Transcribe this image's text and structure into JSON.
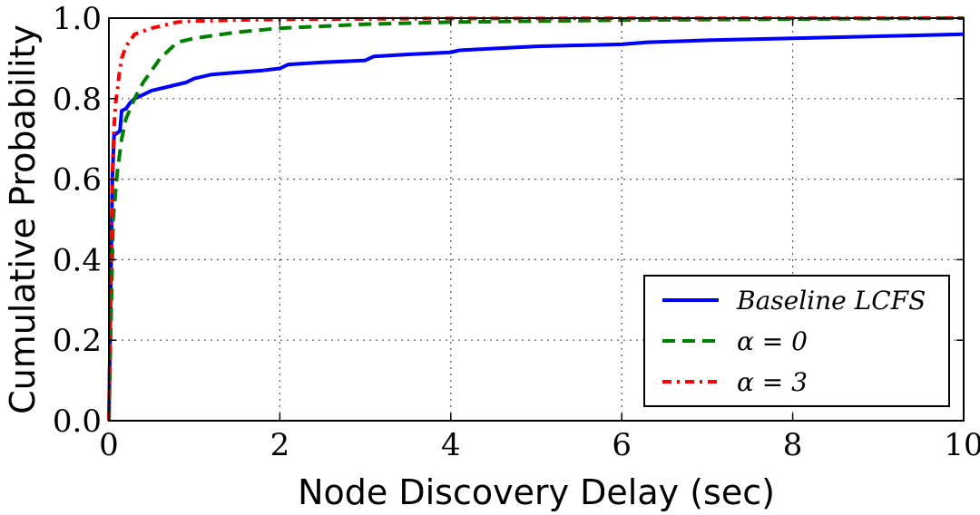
{
  "chart_data": {
    "type": "line",
    "title": "",
    "xlabel": "Node Discovery Delay (sec)",
    "ylabel": "Cumulative Probability",
    "xlim": [
      0,
      10
    ],
    "ylim": [
      0,
      1.0
    ],
    "xticks": [
      "0",
      "2",
      "4",
      "6",
      "8",
      "10"
    ],
    "yticks": [
      "0.0",
      "0.2",
      "0.4",
      "0.6",
      "0.8",
      "1.0"
    ],
    "grid": true,
    "legend_position": "lower-right",
    "series": [
      {
        "name": "Baseline LCFS",
        "color": "#0000ff",
        "style": "solid",
        "points": [
          [
            0,
            0
          ],
          [
            0.02,
            0.3
          ],
          [
            0.04,
            0.6
          ],
          [
            0.06,
            0.71
          ],
          [
            0.1,
            0.715
          ],
          [
            0.13,
            0.72
          ],
          [
            0.15,
            0.77
          ],
          [
            0.2,
            0.775
          ],
          [
            0.25,
            0.79
          ],
          [
            0.3,
            0.8
          ],
          [
            0.4,
            0.81
          ],
          [
            0.5,
            0.82
          ],
          [
            0.7,
            0.83
          ],
          [
            0.9,
            0.84
          ],
          [
            1.0,
            0.85
          ],
          [
            1.2,
            0.86
          ],
          [
            1.5,
            0.865
          ],
          [
            1.8,
            0.87
          ],
          [
            2.0,
            0.875
          ],
          [
            2.1,
            0.885
          ],
          [
            2.5,
            0.89
          ],
          [
            3.0,
            0.895
          ],
          [
            3.1,
            0.905
          ],
          [
            3.5,
            0.91
          ],
          [
            4.0,
            0.915
          ],
          [
            4.1,
            0.92
          ],
          [
            5.0,
            0.93
          ],
          [
            6.0,
            0.935
          ],
          [
            6.3,
            0.94
          ],
          [
            7.0,
            0.945
          ],
          [
            8.0,
            0.95
          ],
          [
            9.0,
            0.955
          ],
          [
            10.0,
            0.96
          ]
        ]
      },
      {
        "name": "α = 0",
        "color": "#008000",
        "style": "dashed",
        "points": [
          [
            0,
            0
          ],
          [
            0.03,
            0.3
          ],
          [
            0.05,
            0.5
          ],
          [
            0.1,
            0.62
          ],
          [
            0.15,
            0.7
          ],
          [
            0.2,
            0.75
          ],
          [
            0.3,
            0.8
          ],
          [
            0.4,
            0.84
          ],
          [
            0.5,
            0.87
          ],
          [
            0.6,
            0.9
          ],
          [
            0.7,
            0.92
          ],
          [
            0.8,
            0.94
          ],
          [
            1.0,
            0.95
          ],
          [
            1.5,
            0.965
          ],
          [
            2.0,
            0.975
          ],
          [
            3.0,
            0.985
          ],
          [
            4.0,
            0.99
          ],
          [
            6.0,
            0.995
          ],
          [
            10.0,
            1.0
          ]
        ]
      },
      {
        "name": "α = 3",
        "color": "#ff0000",
        "style": "dashdot",
        "points": [
          [
            0,
            0
          ],
          [
            0.02,
            0.3
          ],
          [
            0.04,
            0.6
          ],
          [
            0.06,
            0.73
          ],
          [
            0.08,
            0.79
          ],
          [
            0.1,
            0.82
          ],
          [
            0.12,
            0.86
          ],
          [
            0.15,
            0.9
          ],
          [
            0.2,
            0.93
          ],
          [
            0.3,
            0.96
          ],
          [
            0.5,
            0.975
          ],
          [
            0.8,
            0.99
          ],
          [
            1.0,
            0.993
          ],
          [
            2.0,
            0.997
          ],
          [
            4.0,
            0.999
          ],
          [
            10.0,
            1.0
          ]
        ]
      }
    ]
  },
  "legend": {
    "items": [
      "Baseline LCFS",
      "α = 0",
      "α = 3"
    ]
  }
}
